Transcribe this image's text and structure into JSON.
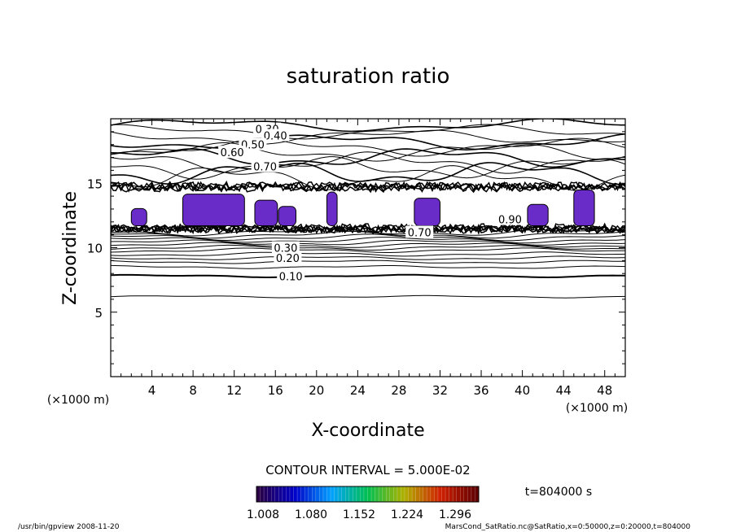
{
  "chart_data": {
    "type": "contour",
    "title": "saturation ratio",
    "xlabel": "X-coordinate",
    "ylabel": "Z-coordinate",
    "x_units": "(×1000 m)",
    "y_units": "(×1000 m)",
    "xlim": [
      0,
      50
    ],
    "ylim": [
      0,
      20
    ],
    "x_ticks": [
      4,
      8,
      12,
      16,
      20,
      24,
      28,
      32,
      36,
      40,
      44,
      48
    ],
    "y_ticks": [
      5,
      10,
      15
    ],
    "contour_interval_label": "CONTOUR INTERVAL = 5.000E-02",
    "time_label": "t=804000 s",
    "colorbar": {
      "ticks": [
        "1.008",
        "1.080",
        "1.152",
        "1.224",
        "1.296"
      ],
      "colors": [
        "#2a0044",
        "#0000c8",
        "#00a0ff",
        "#00c050",
        "#b0b000",
        "#d02000",
        "#600000"
      ]
    },
    "contour_labels": [
      {
        "text": "0.10",
        "x": 17.5,
        "z": 7.8
      },
      {
        "text": "0.20",
        "x": 17.2,
        "z": 9.2
      },
      {
        "text": "0.30",
        "x": 17.0,
        "z": 10.0
      },
      {
        "text": "0.30",
        "x": 15.2,
        "z": 19.2
      },
      {
        "text": "0.40",
        "x": 16.0,
        "z": 18.7
      },
      {
        "text": "0.50",
        "x": 13.8,
        "z": 18.0
      },
      {
        "text": "0.60",
        "x": 11.8,
        "z": 17.4
      },
      {
        "text": "0.70",
        "x": 15.0,
        "z": 16.3
      },
      {
        "text": "0.90",
        "x": 38.8,
        "z": 12.2
      },
      {
        "text": "0.70",
        "x": 30.0,
        "z": 11.2
      }
    ],
    "supersaturated_regions_x": [
      [
        2,
        3.5
      ],
      [
        7,
        13
      ],
      [
        14,
        16.2
      ],
      [
        16.3,
        18
      ],
      [
        21,
        22
      ],
      [
        29.5,
        32
      ],
      [
        40.5,
        42.5
      ],
      [
        45,
        47
      ]
    ],
    "supersaturated_regions_z": [
      11.6,
      14.8
    ]
  },
  "footer": {
    "left": "/usr/bin/gpview   2008-11-20",
    "right": "MarsCond_SatRatio.nc@SatRatio,x=0:50000,z=0:20000,t=804000"
  }
}
